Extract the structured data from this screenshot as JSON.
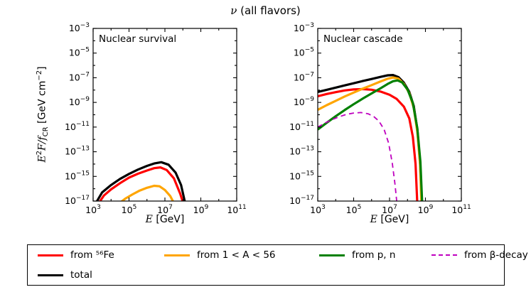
{
  "title": {
    "nu": "ν",
    "rest": " (all flavors)"
  },
  "axes": {
    "xlabel": {
      "var": "E",
      "unit": " [GeV]"
    },
    "ylabel": {
      "e": "E",
      "exp": "2",
      "f": "F",
      "slash": "/f",
      "sub": "CR",
      "unit": " [GeV cm",
      "unit_exp": "−2",
      "close": "]"
    }
  },
  "colors": {
    "total": "#000000",
    "fe": "#ff0000",
    "mid": "#ffa500",
    "pn": "#008000",
    "beta": "#bf00bf",
    "frame": "#000000",
    "background": "#ffffff"
  },
  "legend": {
    "items": [
      {
        "id": "fe",
        "label": "from ⁵⁶Fe",
        "color": "#ff0000",
        "dash": false,
        "row": 1,
        "col": 1
      },
      {
        "id": "mid",
        "label": "from 1 < A < 56",
        "color": "#ffa500",
        "dash": false,
        "row": 1,
        "col": 2
      },
      {
        "id": "pn",
        "label": "from p, n",
        "color": "#008000",
        "dash": false,
        "row": 1,
        "col": 3
      },
      {
        "id": "beta",
        "label": "from β-decay",
        "color": "#bf00bf",
        "dash": true,
        "row": 1,
        "col": 4
      },
      {
        "id": "total",
        "label": "total",
        "color": "#000000",
        "dash": false,
        "row": 2,
        "col": 1
      }
    ]
  },
  "chart_data": [
    {
      "type": "line",
      "title": "Nuclear survival",
      "xlabel": "E [GeV]",
      "ylabel": "E^2 F / f_CR [GeV cm^-2]",
      "xscale": "log",
      "yscale": "log",
      "xlim_exp": [
        3,
        11
      ],
      "ylim_exp": [
        -17,
        -3
      ],
      "xticks_exp": [
        3,
        5,
        7,
        9,
        11
      ],
      "yticks_exp": [
        -3,
        -5,
        -7,
        -9,
        -11,
        -13,
        -15,
        -17
      ],
      "grid": false,
      "series": [
        {
          "id": "total",
          "name": "total",
          "color": "#000000",
          "style": "solid",
          "width": 3.2,
          "points_logxy": [
            [
              3.1,
              -17.3
            ],
            [
              3.5,
              -16.3
            ],
            [
              4,
              -15.7
            ],
            [
              4.5,
              -15.2
            ],
            [
              5,
              -14.8
            ],
            [
              5.5,
              -14.45
            ],
            [
              6,
              -14.15
            ],
            [
              6.4,
              -13.95
            ],
            [
              6.8,
              -13.85
            ],
            [
              7.2,
              -14.05
            ],
            [
              7.6,
              -14.7
            ],
            [
              7.9,
              -15.7
            ],
            [
              8.15,
              -17.3
            ]
          ]
        },
        {
          "id": "fe",
          "name": "from 56Fe",
          "color": "#ff0000",
          "style": "solid",
          "width": 3.2,
          "points_logxy": [
            [
              3.25,
              -17.3
            ],
            [
              3.6,
              -16.55
            ],
            [
              4,
              -16.05
            ],
            [
              4.5,
              -15.55
            ],
            [
              5,
              -15.1
            ],
            [
              5.5,
              -14.78
            ],
            [
              6,
              -14.52
            ],
            [
              6.4,
              -14.33
            ],
            [
              6.75,
              -14.27
            ],
            [
              7.1,
              -14.48
            ],
            [
              7.5,
              -15.15
            ],
            [
              7.85,
              -16.4
            ],
            [
              8.05,
              -17.3
            ]
          ]
        },
        {
          "id": "mid",
          "name": "from 1 < A < 56",
          "color": "#ffa500",
          "style": "solid",
          "width": 3.2,
          "points_logxy": [
            [
              4.35,
              -17.3
            ],
            [
              4.8,
              -16.8
            ],
            [
              5.2,
              -16.45
            ],
            [
              5.6,
              -16.15
            ],
            [
              6,
              -15.92
            ],
            [
              6.4,
              -15.76
            ],
            [
              6.7,
              -15.8
            ],
            [
              7.0,
              -16.1
            ],
            [
              7.3,
              -16.6
            ],
            [
              7.55,
              -17.3
            ]
          ]
        }
      ]
    },
    {
      "type": "line",
      "title": "Nuclear cascade",
      "xlabel": "E [GeV]",
      "ylabel": "E^2 F / f_CR [GeV cm^-2]",
      "xscale": "log",
      "yscale": "log",
      "xlim_exp": [
        3,
        11
      ],
      "ylim_exp": [
        -17,
        -3
      ],
      "xticks_exp": [
        3,
        5,
        7,
        9,
        11
      ],
      "yticks_exp": [
        -3,
        -5,
        -7,
        -9,
        -11,
        -13,
        -15,
        -17
      ],
      "grid": false,
      "series": [
        {
          "id": "total",
          "name": "total",
          "color": "#000000",
          "style": "solid",
          "width": 3.2,
          "points_logxy": [
            [
              3,
              -8.15
            ],
            [
              3.5,
              -7.98
            ],
            [
              4,
              -7.8
            ],
            [
              4.5,
              -7.62
            ],
            [
              5,
              -7.45
            ],
            [
              5.5,
              -7.27
            ],
            [
              6,
              -7.1
            ],
            [
              6.5,
              -6.93
            ],
            [
              6.9,
              -6.8
            ],
            [
              7.2,
              -6.78
            ],
            [
              7.5,
              -6.95
            ],
            [
              7.8,
              -7.4
            ],
            [
              8.1,
              -8.15
            ],
            [
              8.35,
              -9.3
            ],
            [
              8.55,
              -11.2
            ],
            [
              8.7,
              -13.8
            ],
            [
              8.8,
              -17.3
            ]
          ]
        },
        {
          "id": "fe",
          "name": "from 56Fe",
          "color": "#ff0000",
          "style": "solid",
          "width": 3.2,
          "points_logxy": [
            [
              3,
              -8.5
            ],
            [
              3.5,
              -8.32
            ],
            [
              4,
              -8.17
            ],
            [
              4.5,
              -8.03
            ],
            [
              5,
              -7.95
            ],
            [
              5.5,
              -7.92
            ],
            [
              6,
              -7.97
            ],
            [
              6.5,
              -8.12
            ],
            [
              7,
              -8.38
            ],
            [
              7.4,
              -8.72
            ],
            [
              7.8,
              -9.35
            ],
            [
              8.1,
              -10.3
            ],
            [
              8.3,
              -11.8
            ],
            [
              8.45,
              -14
            ],
            [
              8.55,
              -17.3
            ]
          ]
        },
        {
          "id": "mid",
          "name": "from 1 < A < 56",
          "color": "#ffa500",
          "style": "solid",
          "width": 3.2,
          "points_logxy": [
            [
              3,
              -9.6
            ],
            [
              3.5,
              -9.22
            ],
            [
              4,
              -8.87
            ],
            [
              4.5,
              -8.52
            ],
            [
              5,
              -8.2
            ],
            [
              5.5,
              -7.89
            ],
            [
              6,
              -7.6
            ],
            [
              6.5,
              -7.3
            ],
            [
              6.9,
              -7.08
            ],
            [
              7.2,
              -6.98
            ],
            [
              7.5,
              -7.08
            ],
            [
              7.8,
              -7.5
            ],
            [
              8.1,
              -8.25
            ],
            [
              8.35,
              -9.45
            ],
            [
              8.55,
              -11.4
            ],
            [
              8.7,
              -14
            ],
            [
              8.78,
              -17.3
            ]
          ]
        },
        {
          "id": "pn",
          "name": "from p, n",
          "color": "#008000",
          "style": "solid",
          "width": 3.2,
          "points_logxy": [
            [
              3,
              -11.2
            ],
            [
              3.5,
              -10.65
            ],
            [
              4,
              -10.12
            ],
            [
              4.5,
              -9.62
            ],
            [
              5,
              -9.15
            ],
            [
              5.5,
              -8.7
            ],
            [
              6,
              -8.27
            ],
            [
              6.5,
              -7.85
            ],
            [
              6.9,
              -7.5
            ],
            [
              7.2,
              -7.28
            ],
            [
              7.45,
              -7.22
            ],
            [
              7.7,
              -7.38
            ],
            [
              8.0,
              -7.95
            ],
            [
              8.3,
              -9.05
            ],
            [
              8.55,
              -11.1
            ],
            [
              8.72,
              -13.8
            ],
            [
              8.82,
              -17.3
            ]
          ]
        },
        {
          "id": "beta",
          "name": "from β-decay",
          "color": "#bf00bf",
          "style": "dashed",
          "width": 1.8,
          "points_logxy": [
            [
              3,
              -11.0
            ],
            [
              3.4,
              -10.68
            ],
            [
              3.8,
              -10.4
            ],
            [
              4.2,
              -10.16
            ],
            [
              4.6,
              -9.97
            ],
            [
              5,
              -9.86
            ],
            [
              5.4,
              -9.82
            ],
            [
              5.8,
              -9.92
            ],
            [
              6.1,
              -10.12
            ],
            [
              6.4,
              -10.5
            ],
            [
              6.7,
              -11.2
            ],
            [
              6.95,
              -12.3
            ],
            [
              7.15,
              -13.9
            ],
            [
              7.3,
              -15.6
            ],
            [
              7.42,
              -17.3
            ]
          ]
        }
      ]
    }
  ]
}
